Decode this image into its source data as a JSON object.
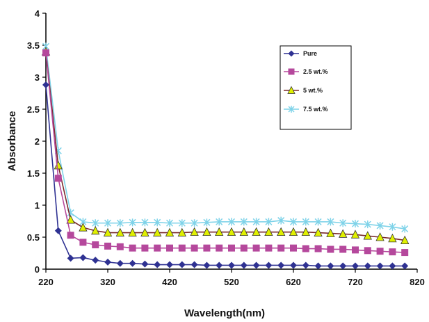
{
  "chart_data": {
    "type": "line",
    "title": "",
    "xlabel": "Wavelength(nm)",
    "ylabel": "Absorbance",
    "xlim": [
      220,
      820
    ],
    "ylim": [
      0,
      4
    ],
    "xticks": [
      220,
      320,
      420,
      520,
      620,
      720,
      820
    ],
    "yticks": [
      0,
      0.5,
      1,
      1.5,
      2,
      2.5,
      3,
      3.5,
      4
    ],
    "ytick_labels": [
      "0",
      "0.5",
      "1",
      "1.5",
      "2",
      "2.5",
      "3",
      "3.5",
      "4"
    ],
    "grid": false,
    "legend_position": "top-right",
    "x": [
      220,
      240,
      260,
      280,
      300,
      320,
      340,
      360,
      380,
      400,
      420,
      440,
      460,
      480,
      500,
      520,
      540,
      560,
      580,
      600,
      620,
      640,
      660,
      680,
      700,
      720,
      740,
      760,
      780,
      800
    ],
    "series": [
      {
        "name": "Pure",
        "color": "#2e3192",
        "marker": "diamond",
        "values": [
          2.88,
          0.6,
          0.17,
          0.18,
          0.14,
          0.11,
          0.09,
          0.09,
          0.08,
          0.07,
          0.07,
          0.07,
          0.07,
          0.06,
          0.06,
          0.06,
          0.06,
          0.06,
          0.06,
          0.06,
          0.06,
          0.06,
          0.05,
          0.05,
          0.05,
          0.05,
          0.05,
          0.05,
          0.05,
          0.05
        ]
      },
      {
        "name": "2.5 wt.%",
        "color": "#b5489c",
        "marker": "square",
        "values": [
          3.38,
          1.42,
          0.53,
          0.42,
          0.38,
          0.36,
          0.35,
          0.33,
          0.33,
          0.33,
          0.33,
          0.33,
          0.33,
          0.33,
          0.33,
          0.33,
          0.33,
          0.33,
          0.33,
          0.33,
          0.33,
          0.32,
          0.32,
          0.31,
          0.31,
          0.3,
          0.29,
          0.28,
          0.27,
          0.26
        ]
      },
      {
        "name": "5 wt.%",
        "color": "#e0f000",
        "line_color": "#7a2a2a",
        "marker": "triangle",
        "values": [
          3.4,
          1.62,
          0.77,
          0.65,
          0.6,
          0.57,
          0.57,
          0.57,
          0.57,
          0.57,
          0.57,
          0.57,
          0.58,
          0.58,
          0.58,
          0.58,
          0.58,
          0.58,
          0.58,
          0.58,
          0.58,
          0.58,
          0.57,
          0.56,
          0.55,
          0.54,
          0.52,
          0.5,
          0.48,
          0.45
        ]
      },
      {
        "name": "7.5 wt.%",
        "color": "#7fd3e9",
        "marker": "x",
        "values": [
          3.48,
          1.85,
          0.88,
          0.74,
          0.72,
          0.72,
          0.72,
          0.73,
          0.73,
          0.73,
          0.72,
          0.72,
          0.72,
          0.73,
          0.74,
          0.74,
          0.74,
          0.74,
          0.74,
          0.76,
          0.74,
          0.74,
          0.74,
          0.74,
          0.72,
          0.71,
          0.7,
          0.68,
          0.66,
          0.63
        ]
      }
    ]
  }
}
